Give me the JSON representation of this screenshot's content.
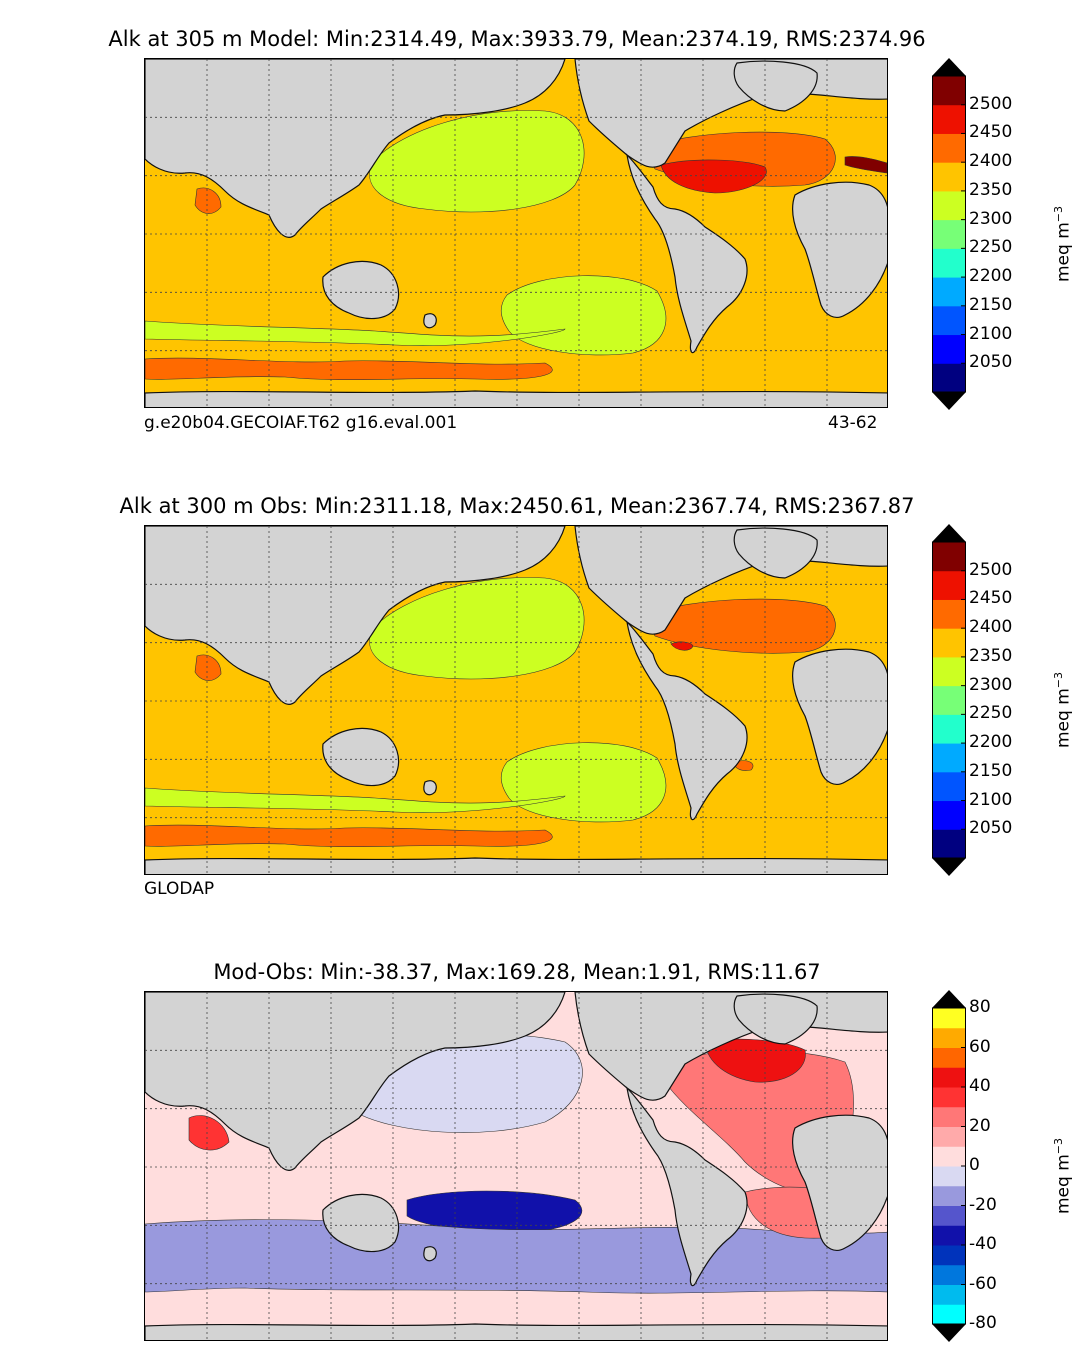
{
  "chart_data": [
    {
      "type": "heatmap",
      "panel": "model",
      "title": "Alk at 305 m Model: Min:2314.49, Max:3933.79, Mean:2374.19, RMS:2374.96",
      "case_label": "g.e20b04.GECOIAF.T62 g16.eval.001",
      "years_label": "43-62",
      "colorbar": {
        "units": "meq m",
        "units_exp": "−3",
        "ticks": [
          "2050",
          "2100",
          "2150",
          "2200",
          "2250",
          "2300",
          "2350",
          "2400",
          "2450",
          "2500"
        ],
        "levels": [
          2000,
          2050,
          2100,
          2150,
          2200,
          2250,
          2300,
          2350,
          2400,
          2450,
          2500,
          2550
        ],
        "colors": [
          "#000080",
          "#0000ff",
          "#0055ff",
          "#00aaff",
          "#22ffcc",
          "#77ff77",
          "#ccff22",
          "#ffc400",
          "#ff6a00",
          "#ee1100",
          "#800000"
        ],
        "extend": "both",
        "under_color": "#000000",
        "over_color": "#000000"
      },
      "regions": [
        {
          "name": "background",
          "value": 2360
        },
        {
          "name": "north-pacific",
          "value": 2320
        },
        {
          "name": "south-pacific",
          "value": 2330
        },
        {
          "name": "southern-band",
          "value": 2330
        },
        {
          "name": "north-atlantic",
          "value": 2420
        },
        {
          "name": "subtropical-north-atlantic",
          "value": 2460
        },
        {
          "name": "mediterranean",
          "value": 2520
        },
        {
          "name": "arabian-sea",
          "value": 2430
        },
        {
          "name": "bay-of-bengal",
          "value": 2410
        },
        {
          "name": "southern-ocean-belt",
          "value": 2410
        }
      ]
    },
    {
      "type": "heatmap",
      "panel": "obs",
      "title": "Alk at 300 m Obs: Min:2311.18, Max:2450.61, Mean:2367.74, RMS:2367.87",
      "case_label": "GLODAP",
      "colorbar": {
        "units": "meq m",
        "units_exp": "−3",
        "ticks": [
          "2050",
          "2100",
          "2150",
          "2200",
          "2250",
          "2300",
          "2350",
          "2400",
          "2450",
          "2500"
        ],
        "levels": [
          2000,
          2050,
          2100,
          2150,
          2200,
          2250,
          2300,
          2350,
          2400,
          2450,
          2500,
          2550
        ],
        "colors": [
          "#000080",
          "#0000ff",
          "#0055ff",
          "#00aaff",
          "#22ffcc",
          "#77ff77",
          "#ccff22",
          "#ffc400",
          "#ff6a00",
          "#ee1100",
          "#800000"
        ],
        "extend": "both",
        "under_color": "#000000",
        "over_color": "#000000"
      },
      "regions": [
        {
          "name": "background",
          "value": 2360
        },
        {
          "name": "north-pacific",
          "value": 2320
        },
        {
          "name": "south-pacific",
          "value": 2330
        },
        {
          "name": "southern-band",
          "value": 2330
        },
        {
          "name": "north-atlantic",
          "value": 2410
        },
        {
          "name": "gulf-core",
          "value": 2455
        },
        {
          "name": "arabian-sea",
          "value": 2410
        },
        {
          "name": "south-atlantic-patch",
          "value": 2410
        },
        {
          "name": "southern-ocean-belt",
          "value": 2410
        }
      ]
    },
    {
      "type": "heatmap",
      "panel": "difference",
      "title": "Mod-Obs: Min:-38.37, Max:169.28, Mean:1.91, RMS:11.67",
      "colorbar": {
        "units": "meq m",
        "units_exp": "−3",
        "ticks": [
          "-80",
          "-60",
          "-40",
          "-20",
          "0",
          "20",
          "40",
          "60",
          "80"
        ],
        "levels": [
          -80,
          -70,
          -60,
          -50,
          -40,
          -30,
          -20,
          -10,
          0,
          10,
          20,
          30,
          40,
          50,
          60,
          70,
          80
        ],
        "colors": [
          "#00ffff",
          "#00bbee",
          "#0077dd",
          "#0033bb",
          "#1111aa",
          "#5555cc",
          "#9999dd",
          "#d9d9f2",
          "#ffdddd",
          "#ffaaaa",
          "#ff7777",
          "#ff3333",
          "#ee1111",
          "#ff6600",
          "#ffaa00",
          "#ffff22"
        ],
        "extend": "both",
        "under_color": "#000000",
        "over_color": "#000000"
      },
      "regions": [
        {
          "name": "background",
          "value": 3
        },
        {
          "name": "north-pacific-neg",
          "value": -8
        },
        {
          "name": "south-pacific-neg",
          "value": -35
        },
        {
          "name": "north-atlantic-pos",
          "value": 25
        },
        {
          "name": "labrador-pos",
          "value": 45
        },
        {
          "name": "arabian-sea-pos",
          "value": 35
        },
        {
          "name": "southern-ocean-mixed",
          "value": -15
        },
        {
          "name": "south-atlantic-pos",
          "value": 25
        }
      ]
    }
  ]
}
